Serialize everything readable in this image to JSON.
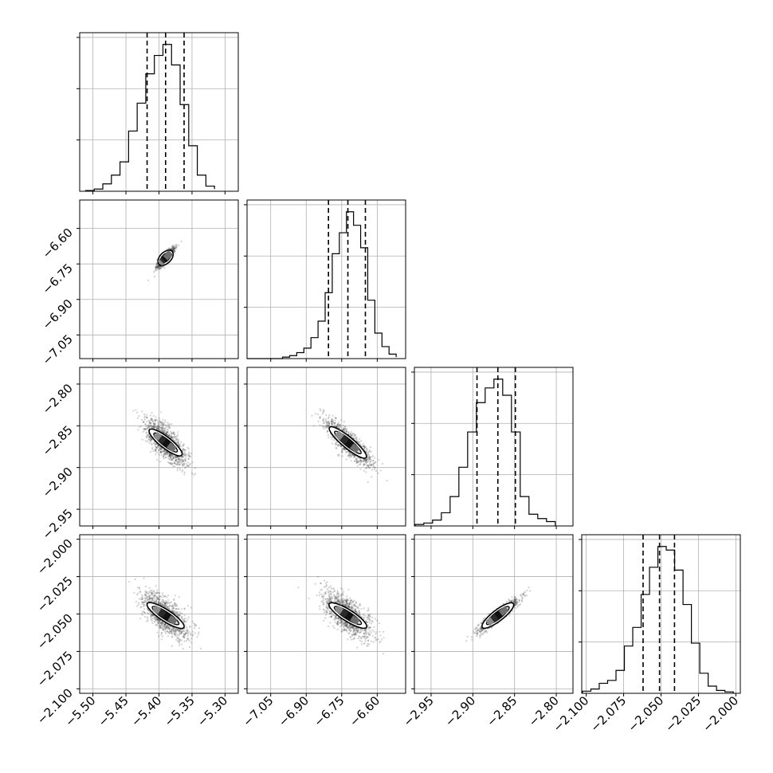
{
  "chart_data": {
    "type": "corner",
    "grid": true,
    "parameters": [
      {
        "index": 0,
        "range": [
          -5.52,
          -5.28
        ],
        "ticks": [
          -5.5,
          -5.45,
          -5.4,
          -5.35,
          -5.3
        ],
        "tick_labels": [
          "−5.50",
          "−5.45",
          "−5.40",
          "−5.35",
          "−5.30"
        ],
        "quantiles": [
          -5.418,
          -5.39,
          -5.362
        ],
        "center": -5.39,
        "histogram_bins": [
          -5.511,
          -5.498,
          -5.485,
          -5.472,
          -5.459,
          -5.446,
          -5.433,
          -5.42,
          -5.407,
          -5.394,
          -5.381,
          -5.368,
          -5.355,
          -5.342,
          -5.329,
          -5.316
        ],
        "histogram_counts": [
          1,
          3,
          10,
          22,
          40,
          82,
          120,
          160,
          185,
          200,
          172,
          118,
          62,
          22,
          7,
          3
        ]
      },
      {
        "index": 1,
        "range": [
          -7.15,
          -6.48
        ],
        "ticks": [
          -7.05,
          -6.9,
          -6.75,
          -6.6
        ],
        "tick_labels": [
          "−7.05",
          "−6.90",
          "−6.75",
          "−6.60"
        ],
        "quantiles": [
          -6.806,
          -6.724,
          -6.65
        ],
        "center": -6.724,
        "histogram_bins": [
          -7.15,
          -7.12,
          -7.09,
          -7.06,
          -7.03,
          -7.0,
          -6.97,
          -6.94,
          -6.91,
          -6.88,
          -6.85,
          -6.82,
          -6.79,
          -6.76,
          -6.73,
          -6.7,
          -6.67,
          -6.64,
          -6.61,
          -6.58,
          -6.55,
          -6.52
        ],
        "histogram_counts": [
          0,
          0,
          0,
          0,
          0,
          2,
          4,
          8,
          14,
          28,
          50,
          88,
          140,
          168,
          196,
          178,
          148,
          78,
          34,
          16,
          6,
          2
        ]
      },
      {
        "index": 2,
        "range": [
          -2.97,
          -2.78
        ],
        "ticks": [
          -2.95,
          -2.9,
          -2.85,
          -2.8
        ],
        "tick_labels": [
          "−2.95",
          "−2.90",
          "−2.85",
          "−2.80"
        ],
        "quantiles": [
          -2.895,
          -2.87,
          -2.849
        ],
        "center": -2.87,
        "histogram_bins": [
          -2.9692,
          -2.9587,
          -2.9482,
          -2.9377,
          -2.9272,
          -2.9167,
          -2.9062,
          -2.8957,
          -2.8852,
          -2.8747,
          -2.8642,
          -2.8537,
          -2.8432,
          -2.8327,
          -2.8222,
          -2.8117,
          -2.8012
        ],
        "histogram_counts": [
          2,
          4,
          8,
          18,
          40,
          80,
          128,
          168,
          188,
          200,
          178,
          128,
          40,
          16,
          10,
          6
        ]
      },
      {
        "index": 3,
        "range": [
          -2.103,
          -1.997
        ],
        "ticks": [
          -2.1,
          -2.075,
          -2.05,
          -2.025,
          -2.0
        ],
        "tick_labels": [
          "−2.100",
          "−2.075",
          "−2.050",
          "−2.025",
          "−2.000"
        ],
        "quantiles": [
          -2.062,
          -2.051,
          -2.041
        ],
        "center": -2.051,
        "histogram_bins": [
          -2.1025,
          -2.0969,
          -2.0913,
          -2.0857,
          -2.0801,
          -2.0745,
          -2.0689,
          -2.0633,
          -2.0577,
          -2.0521,
          -2.0465,
          -2.0409,
          -2.0353,
          -2.0297,
          -2.0241,
          -2.0185,
          -2.0129,
          -2.0073,
          -2.0017
        ],
        "histogram_counts": [
          3,
          6,
          14,
          18,
          32,
          66,
          92,
          138,
          176,
          205,
          200,
          172,
          124,
          70,
          28,
          10,
          4,
          2
        ]
      }
    ],
    "pairs": [
      {
        "x": 0,
        "y": 1,
        "slope": 2.75,
        "major": 0.04,
        "minor": 0.006
      },
      {
        "x": 0,
        "y": 2,
        "slope": -0.62,
        "major": 0.04,
        "minor": 0.006
      },
      {
        "x": 1,
        "y": 2,
        "slope": -0.235,
        "major": 0.11,
        "minor": 0.0045
      },
      {
        "x": 0,
        "y": 3,
        "slope": -0.29,
        "major": 0.04,
        "minor": 0.0035
      },
      {
        "x": 1,
        "y": 3,
        "slope": -0.1,
        "major": 0.11,
        "minor": 0.0035
      },
      {
        "x": 2,
        "y": 3,
        "slope": 0.43,
        "major": 0.028,
        "minor": 0.0012
      }
    ]
  }
}
